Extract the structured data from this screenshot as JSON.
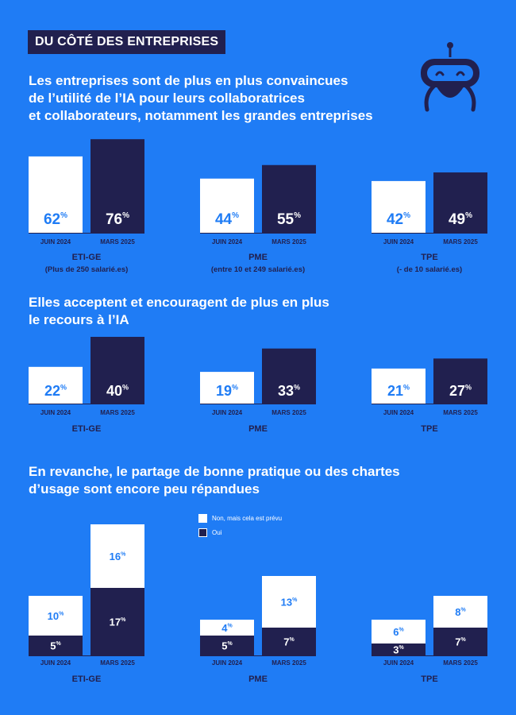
{
  "header": {
    "badge": "DU CÔTÉ DES ENTREPRISES"
  },
  "sections": [
    {
      "heading_lines": [
        "Les entreprises sont de plus en plus convaincues",
        "de l’utilité de l’IA pour leurs collaboratrices",
        "et collaborateurs, notamment les grandes entreprises"
      ]
    },
    {
      "heading_lines": [
        "Elles acceptent et encouragent de plus en plus",
        "le recours à l’IA"
      ]
    },
    {
      "heading_lines": [
        "En revanche, le partage de bonne pratique ou des chartes",
        "d’usage sont encore peu répandues"
      ]
    }
  ],
  "legend": {
    "items": [
      {
        "label": "Non, mais cela est prévu",
        "color": "#ffffff"
      },
      {
        "label": "Oui",
        "color": "#21204f"
      }
    ]
  },
  "colors": {
    "background": "#1f7cf5",
    "dark": "#21204f",
    "light": "#ffffff",
    "accent_text": "#1f7cf5"
  },
  "icon": "robot-icon",
  "chart_data": [
    {
      "type": "bar",
      "categories": [
        "JUIN 2024",
        "MARS 2025"
      ],
      "unit": "%",
      "groups": [
        {
          "label_lines": [
            "ETI-GE",
            "(Plus de 250 salarié.es)"
          ],
          "values": [
            62,
            76
          ]
        },
        {
          "label_lines": [
            "PME",
            "(entre 10 et 249 salarié.es)"
          ],
          "values": [
            44,
            55
          ]
        },
        {
          "label_lines": [
            "TPE",
            "(- de 10 salarié.es)"
          ],
          "values": [
            42,
            49
          ]
        }
      ]
    },
    {
      "type": "bar",
      "categories": [
        "JUIN 2024",
        "MARS 2025"
      ],
      "unit": "%",
      "groups": [
        {
          "label_lines": [
            "ETI-GE"
          ],
          "values": [
            22,
            40
          ]
        },
        {
          "label_lines": [
            "PME"
          ],
          "values": [
            19,
            33
          ]
        },
        {
          "label_lines": [
            "TPE"
          ],
          "values": [
            21,
            27
          ]
        }
      ]
    },
    {
      "type": "bar",
      "stacked": true,
      "categories": [
        "JUIN 2024",
        "MARS 2025"
      ],
      "unit": "%",
      "series": [
        {
          "name": "Oui",
          "color": "#21204f"
        },
        {
          "name": "Non, mais cela est prévu",
          "color": "#ffffff"
        }
      ],
      "groups": [
        {
          "label_lines": [
            "ETI-GE"
          ],
          "values": {
            "Oui": [
              5,
              17
            ],
            "Non, mais cela est prévu": [
              10,
              16
            ]
          }
        },
        {
          "label_lines": [
            "PME"
          ],
          "values": {
            "Oui": [
              5,
              7
            ],
            "Non, mais cela est prévu": [
              4,
              13
            ]
          }
        },
        {
          "label_lines": [
            "TPE"
          ],
          "values": {
            "Oui": [
              3,
              7
            ],
            "Non, mais cela est prévu": [
              6,
              8
            ]
          }
        }
      ]
    }
  ]
}
